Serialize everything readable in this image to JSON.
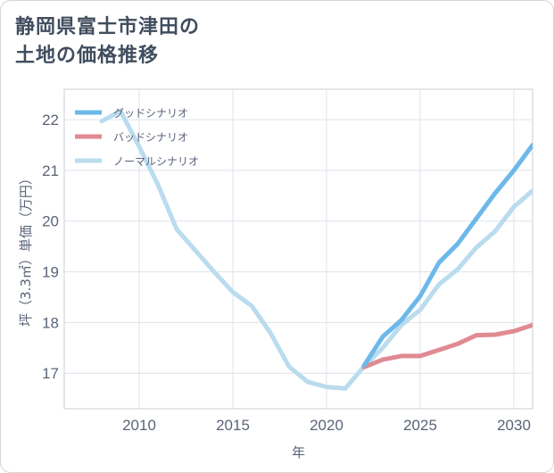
{
  "title_line1": "静岡県富士市津田の",
  "title_line2": "土地の価格推移",
  "chart_data": {
    "type": "line",
    "xlabel": "年",
    "ylabel": "坪（3.3㎡）単価（万円）",
    "xlim": [
      2006,
      2031
    ],
    "ylim": [
      16.3,
      22.6
    ],
    "xticks": [
      2010,
      2015,
      2020,
      2025,
      2030
    ],
    "yticks": [
      17,
      18,
      19,
      20,
      21,
      22
    ],
    "legend_position": "top-left",
    "grid": true,
    "series": [
      {
        "name": "グッドシナリオ",
        "color": "#6cb8ea",
        "x": [
          2022,
          2023,
          2024,
          2025,
          2026,
          2027,
          2028,
          2029,
          2030,
          2031
        ],
        "y": [
          17.15,
          17.72,
          18.05,
          18.52,
          19.18,
          19.55,
          20.05,
          20.55,
          21.0,
          21.5
        ]
      },
      {
        "name": "バッドシナリオ",
        "color": "#e08a92",
        "x": [
          2022,
          2023,
          2024,
          2025,
          2026,
          2027,
          2028,
          2029,
          2030,
          2031
        ],
        "y": [
          17.12,
          17.27,
          17.34,
          17.34,
          17.46,
          17.58,
          17.75,
          17.76,
          17.83,
          17.95
        ]
      },
      {
        "name": "ノーマルシナリオ",
        "color": "#b9dcee",
        "x": [
          2008,
          2009,
          2010,
          2011,
          2012,
          2013,
          2014,
          2015,
          2016,
          2017,
          2018,
          2019,
          2020,
          2021,
          2022,
          2023,
          2024,
          2025,
          2026,
          2027,
          2028,
          2029,
          2030,
          2031
        ],
        "y": [
          21.97,
          22.17,
          21.47,
          20.72,
          19.84,
          19.42,
          19.0,
          18.6,
          18.33,
          17.8,
          17.13,
          16.83,
          16.73,
          16.7,
          17.13,
          17.5,
          17.95,
          18.25,
          18.75,
          19.05,
          19.48,
          19.8,
          20.28,
          20.6
        ]
      }
    ]
  }
}
